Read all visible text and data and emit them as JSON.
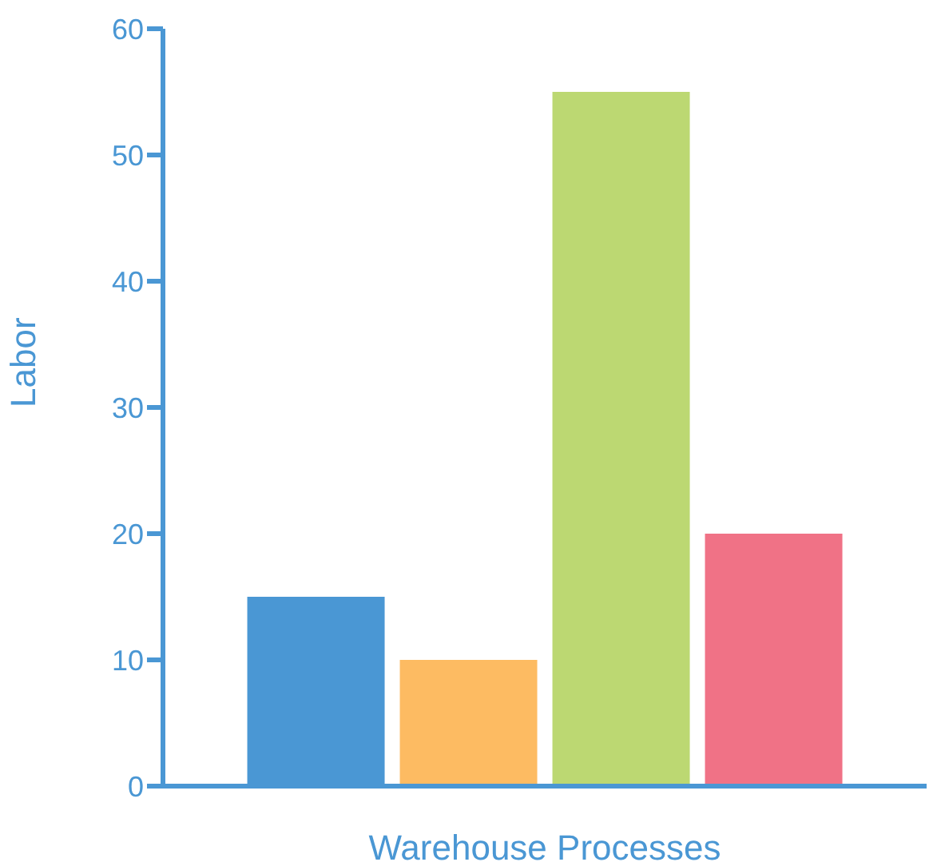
{
  "chart_data": {
    "type": "bar",
    "xlabel": "Warehouse Processes",
    "ylabel": "Labor",
    "categories": [
      null,
      null,
      null,
      null
    ],
    "values": [
      15,
      10,
      55,
      20
    ],
    "colors": [
      "#4a97d4",
      "#fdbb62",
      "#bcd872",
      "#f07286"
    ],
    "ylim": [
      0,
      60
    ],
    "yticks": [
      0,
      10,
      20,
      30,
      40,
      50,
      60
    ],
    "grid": false,
    "legend": false
  }
}
